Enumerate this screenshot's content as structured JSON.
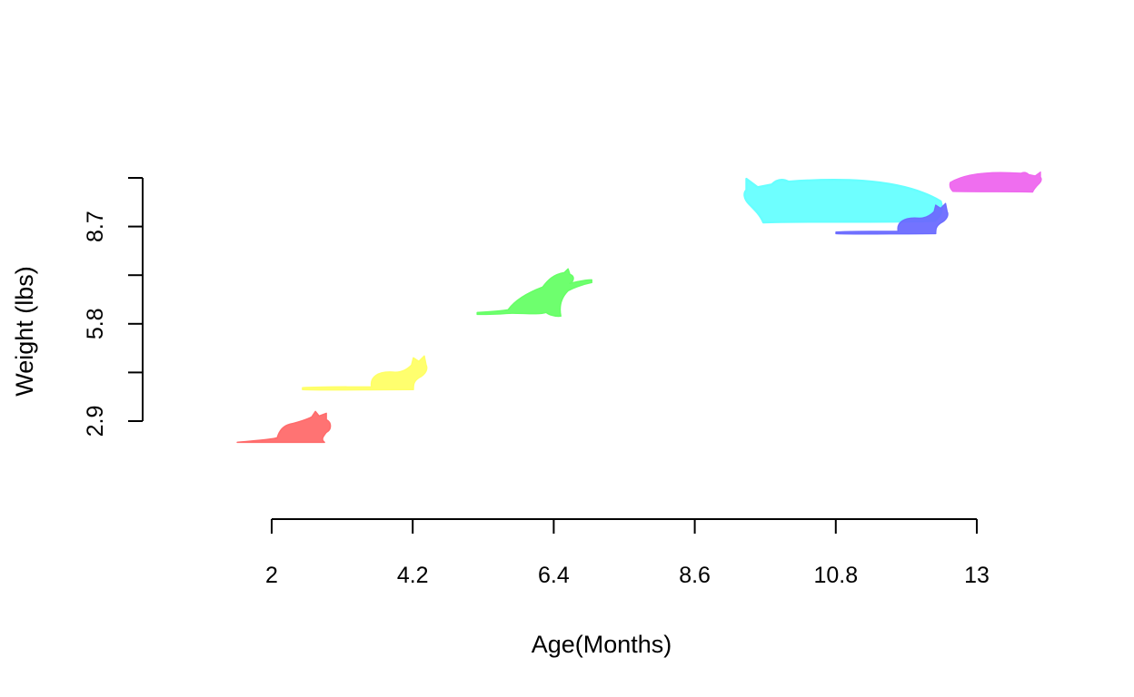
{
  "chart_data": {
    "type": "scatter",
    "title": "",
    "xlabel": "Age(Months)",
    "ylabel": "Weight (lbs)",
    "x_ticks": [
      2,
      3.1,
      4.2,
      5.3,
      6.4,
      7.5,
      8.6,
      9.7,
      10.8,
      11.9,
      13
    ],
    "x_tick_labels": [
      "2",
      "",
      "4.2",
      "",
      "6.4",
      "",
      "8.6",
      "",
      "10.8",
      "",
      "13"
    ],
    "y_ticks": [
      2.9,
      4.35,
      5.8,
      7.25,
      8.7,
      10.15
    ],
    "y_tick_labels": [
      "2.9",
      "",
      "5.8",
      "",
      "8.7",
      ""
    ],
    "xlim": [
      2,
      13
    ],
    "ylim": [
      2.9,
      10.15
    ],
    "marker": "cat-silhouette",
    "points": [
      {
        "x": 2.2,
        "y": 2.7,
        "color": "#FF6B6B",
        "pose": "crouching"
      },
      {
        "x": 3.7,
        "y": 4.3,
        "color": "#FFFF66",
        "pose": "sitting"
      },
      {
        "x": 6.0,
        "y": 6.3,
        "color": "#66FF66",
        "pose": "stretching"
      },
      {
        "x": 10.9,
        "y": 9.2,
        "color": "#66FFFF",
        "pose": "lying"
      },
      {
        "x": 11.9,
        "y": 8.9,
        "color": "#6B6BFF",
        "pose": "sitting"
      },
      {
        "x": 13.3,
        "y": 9.9,
        "color": "#EE66EE",
        "pose": "lying"
      }
    ]
  }
}
